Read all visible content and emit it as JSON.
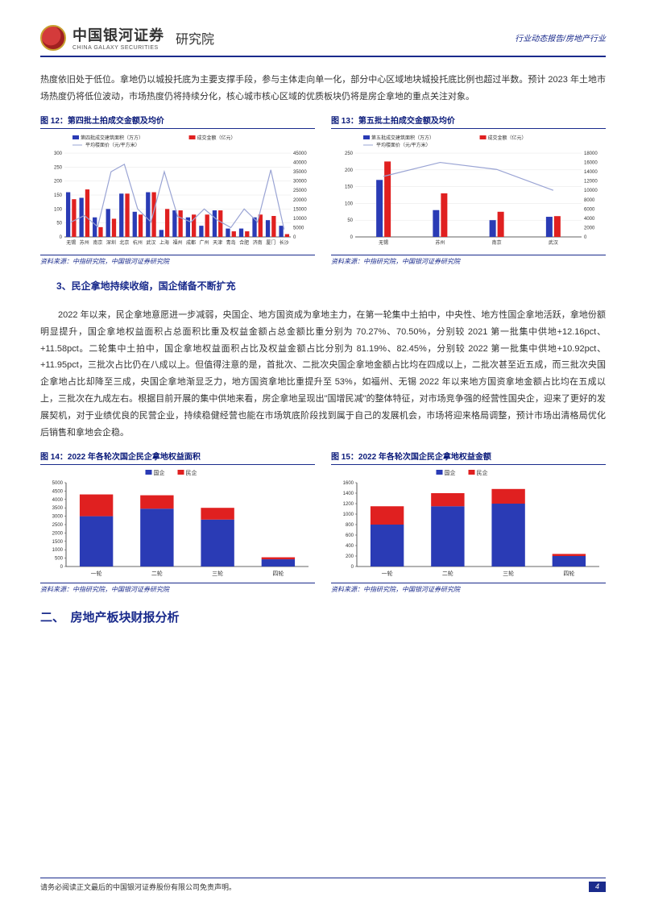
{
  "header": {
    "logo_cn": "中国银河证券",
    "logo_en": "CHINA GALAXY SECURITIES",
    "logo_suffix": "研究院",
    "right": "行业动态报告/房地产行业"
  },
  "para1": "热度依旧处于低位。拿地仍以城投托底为主要支撑手段，参与主体走向单一化，部分中心区域地块城投托底比例也超过半数。预计 2023 年土地市场热度仍将低位波动，市场热度仍将持续分化，核心城市核心区域的优质板块仍将是房企拿地的重点关注对象。",
  "fig12": {
    "title": "图 12：第四批土拍成交金额及均价",
    "source": "资料来源：中指研究院，中国银河证券研究院",
    "legend": [
      "第四批成交建筑面积（万方）",
      "成交金额（亿元）",
      "平均楼面价（元/平方米）"
    ],
    "categories": [
      "无锡",
      "苏州",
      "南京",
      "深圳",
      "北京",
      "杭州",
      "武汉",
      "上海",
      "福州",
      "成都",
      "广州",
      "天津",
      "青岛",
      "合肥",
      "济南",
      "厦门",
      "长沙"
    ],
    "area": [
      160,
      140,
      70,
      100,
      155,
      90,
      160,
      25,
      95,
      70,
      40,
      95,
      30,
      30,
      70,
      60,
      40
    ],
    "amt": [
      135,
      170,
      35,
      65,
      155,
      80,
      160,
      100,
      95,
      80,
      80,
      95,
      20,
      20,
      80,
      75,
      10
    ],
    "price": [
      8000,
      11500,
      5500,
      35000,
      39000,
      15000,
      8000,
      35000,
      11000,
      8000,
      15000,
      9000,
      5000,
      15000,
      8000,
      36000,
      4000
    ],
    "y1_max": 300,
    "y1_step": 50,
    "y2_max": 45000,
    "y2_step": 5000,
    "colors": {
      "area": "#2a3bb5",
      "amt": "#e02020",
      "line": "#9aa4d4",
      "grid": "#e6e6e6",
      "axis": "#333333"
    }
  },
  "fig13": {
    "title": "图 13：第五批土拍成交金额及均价",
    "source": "资料来源：中指研究院，中国银河证券研究院",
    "legend": [
      "第五批成交建筑面积（万方）",
      "成交金额（亿元）",
      "平均楼面价（元/平方米）"
    ],
    "categories": [
      "无锡",
      "苏州",
      "南京",
      "武汉"
    ],
    "area": [
      170,
      80,
      50,
      60
    ],
    "amt": [
      225,
      130,
      75,
      62
    ],
    "price": [
      13000,
      16000,
      14500,
      10000
    ],
    "y1_max": 250,
    "y1_step": 50,
    "y2_max": 18000,
    "y2_step": 2000,
    "colors": {
      "area": "#2a3bb5",
      "amt": "#e02020",
      "line": "#9aa4d4",
      "grid": "#e6e6e6",
      "axis": "#333333"
    }
  },
  "sub3": "3、民企拿地持续收缩，国企储备不断扩充",
  "para2": "2022 年以来，民企拿地意愿进一步减弱，央国企、地方国资成为拿地主力，在第一轮集中土拍中，中央性、地方性国企拿地活跃，拿地份额明显提升，国企拿地权益面积占总面积比重及权益金额占总金额比重分别为 70.27%、70.50%，分别较 2021 第一批集中供地+12.16pct、+11.58pct。二轮集中土拍中，国企拿地权益面积占比及权益金额占比分别为 81.19%、82.45%，分别较 2022 第一批集中供地+10.92pct、+11.95pct，三批次占比仍在八成以上。但值得注意的是，首批次、二批次央国企拿地金额占比均在四成以上，二批次甚至近五成，而三批次央国企拿地占比却降至三成，央国企拿地渐显乏力，地方国资拿地比重提升至 53%，如福州、无锡 2022 年以来地方国资拿地金额占比均在五成以上，三批次在九成左右。根据目前开展的集中供地来看，房企拿地呈现出\"国增民减\"的整体特征，对市场竞争强的经营性国央企，迎来了更好的发展契机，对于业绩优良的民营企业，持续稳健经营也能在市场筑底阶段找到属于自己的发展机会，市场将迎来格局调整，预计市场出清格局优化后销售和拿地会企稳。",
  "fig14": {
    "title": "图 14：2022 年各轮次国企民企拿地权益面积",
    "source": "资料来源：中指研究院，中国银河证券研究院",
    "legend": [
      "国企",
      "民企"
    ],
    "categories": [
      "一轮",
      "二轮",
      "三轮",
      "四轮"
    ],
    "soe": [
      3000,
      3450,
      2800,
      430
    ],
    "private": [
      1300,
      800,
      700,
      120
    ],
    "y_max": 5000,
    "y_step": 500,
    "colors": {
      "soe": "#2a3bb5",
      "private": "#e02020",
      "axis": "#333333"
    }
  },
  "fig15": {
    "title": "图 15：2022 年各轮次国企民企拿地权益金额",
    "source": "资料来源：中指研究院，中国银河证券研究院",
    "legend": [
      "国企",
      "民企"
    ],
    "categories": [
      "一轮",
      "二轮",
      "三轮",
      "四轮"
    ],
    "soe": [
      800,
      1150,
      1200,
      200
    ],
    "private": [
      350,
      250,
      280,
      40
    ],
    "y_max": 1600,
    "y_step": 200,
    "colors": {
      "soe": "#2a3bb5",
      "private": "#e02020",
      "axis": "#333333"
    }
  },
  "section2": "二、　房地产板块财报分析",
  "footer": {
    "disclaimer": "请务必阅读正文最后的中国银河证券股份有限公司免责声明。",
    "page": "4"
  }
}
